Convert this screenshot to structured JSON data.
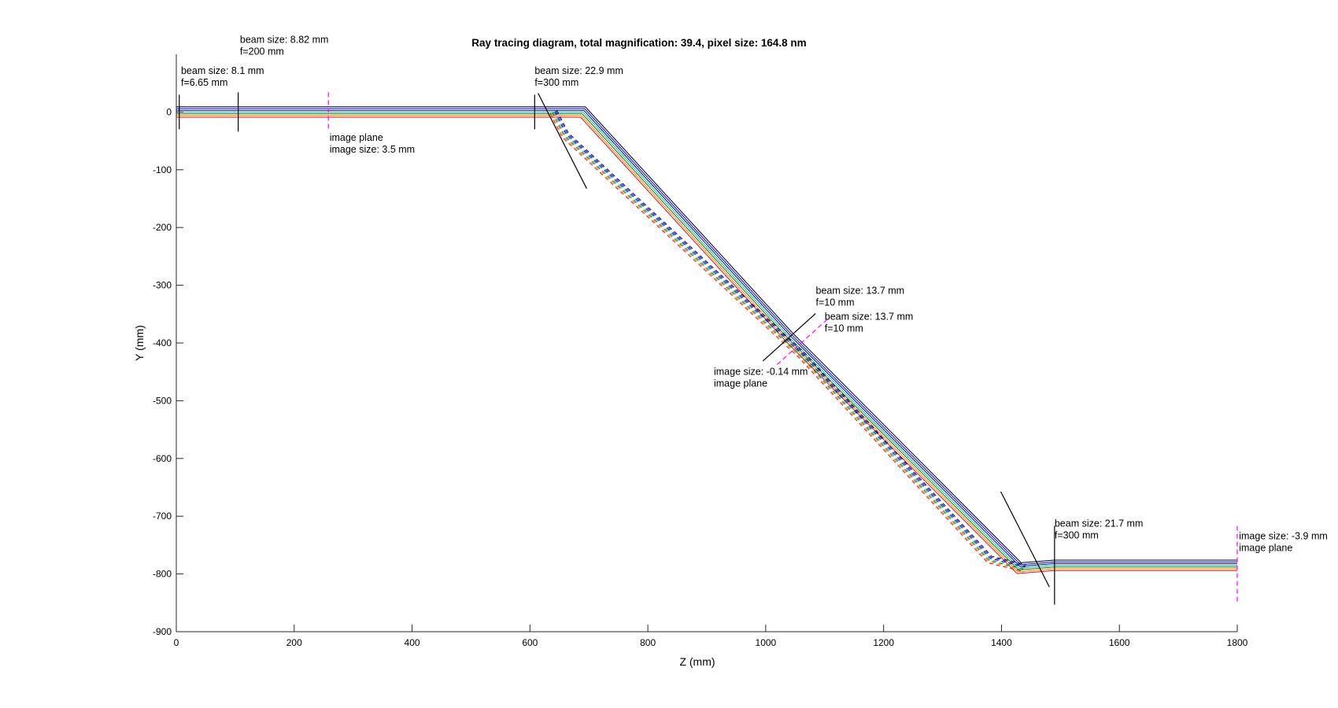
{
  "chart_data": {
    "type": "line",
    "title": "Ray tracing diagram, total magnification: 39.4, pixel size: 164.8 nm",
    "xlabel": "Z (mm)",
    "ylabel": "Y (mm)",
    "xlim": [
      0,
      1800
    ],
    "ylim": [
      -900,
      100
    ],
    "xticks": [
      0,
      200,
      400,
      600,
      800,
      1000,
      1200,
      1400,
      1600,
      1800
    ],
    "yticks": [
      0,
      -100,
      -200,
      -300,
      -400,
      -500,
      -600,
      -700,
      -800,
      -900
    ],
    "grid": false,
    "ray_colors": [
      "#ff0000",
      "#ff8000",
      "#008000",
      "#00bfbf",
      "#00008b",
      "#0000ff",
      "#000000"
    ],
    "ray_offsets_mm": [
      -9,
      -6,
      -3,
      0,
      3,
      6,
      9
    ],
    "beam_path": [
      [
        0,
        0
      ],
      [
        260,
        0
      ],
      [
        610,
        0
      ],
      [
        690,
        0
      ],
      [
        1040,
        -390
      ],
      [
        1430,
        -790
      ],
      [
        1490,
        -785
      ],
      [
        1800,
        -785
      ]
    ],
    "dashed_path": [
      [
        640,
        0
      ],
      [
        660,
        -40
      ],
      [
        1060,
        -420
      ],
      [
        1380,
        -775
      ],
      [
        1440,
        -790
      ]
    ],
    "lenses": [
      {
        "z": 5,
        "y": 0,
        "half": 22,
        "angle_deg": 0
      },
      {
        "z": 105,
        "y": 0,
        "half": 25,
        "angle_deg": 0
      },
      {
        "z": 608,
        "y": 0,
        "half": 22,
        "angle_deg": 0
      },
      {
        "z": 1040,
        "y": -390,
        "half": 45,
        "angle_deg": -48
      },
      {
        "z": 1490,
        "y": -785,
        "half": 50,
        "angle_deg": 0
      }
    ],
    "mirrors": [
      {
        "z": 655,
        "y": -50,
        "half": 68,
        "angle_deg": 27
      },
      {
        "z": 1440,
        "y": -740,
        "half": 68,
        "angle_deg": 27
      }
    ],
    "image_planes": [
      {
        "z": 258,
        "y": 0,
        "half": 25,
        "angle_deg": 0
      },
      {
        "z": 1060,
        "y": -400,
        "half": 45,
        "angle_deg": -48
      },
      {
        "z": 1800,
        "y": -785,
        "half": 50,
        "angle_deg": 0
      }
    ],
    "annotations": [
      {
        "z": 8,
        "y": 66,
        "lines": [
          "beam size: 8.1 mm",
          "f=6.65 mm"
        ]
      },
      {
        "z": 108,
        "y": 120,
        "lines": [
          "beam size: 8.82 mm",
          "f=200 mm"
        ]
      },
      {
        "z": 260,
        "y": -50,
        "lines": [
          "image plane",
          "image size: 3.5 mm"
        ]
      },
      {
        "z": 608,
        "y": 66,
        "lines": [
          "beam size: 22.9 mm",
          "f=300 mm"
        ]
      },
      {
        "z": 1085,
        "y": -315,
        "lines": [
          "beam size: 13.7 mm",
          "f=10 mm"
        ]
      },
      {
        "z": 1100,
        "y": -360,
        "lines": [
          "beam size: 13.7 mm",
          "f=10 mm"
        ]
      },
      {
        "z": 912,
        "y": -455,
        "lines": [
          "image size: -0.14 mm",
          "image plane"
        ]
      },
      {
        "z": 1490,
        "y": -718,
        "lines": [
          "beam size: 21.7 mm",
          "f=300 mm"
        ]
      },
      {
        "z": 1803,
        "y": -740,
        "lines": [
          "image size: -3.9 mm",
          "image plane"
        ]
      }
    ]
  }
}
